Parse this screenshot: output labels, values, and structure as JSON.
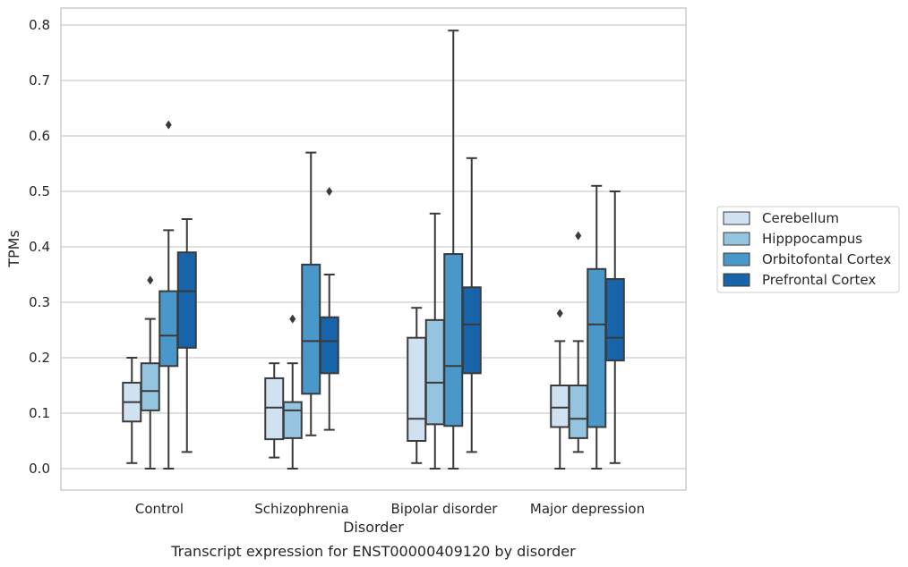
{
  "caption": "Transcript expression for ENST00000409120 by disorder",
  "chart_data": {
    "type": "box",
    "xlabel": "Disorder",
    "ylabel": "TPMs",
    "ylim": [
      -0.04,
      0.83
    ],
    "yticks": [
      0.0,
      0.1,
      0.2,
      0.3,
      0.4,
      0.5,
      0.6,
      0.7,
      0.8
    ],
    "ytick_labels": [
      "0.0",
      "0.1",
      "0.2",
      "0.3",
      "0.4",
      "0.5",
      "0.6",
      "0.7",
      "0.8"
    ],
    "grid": "horizontal",
    "legend_position": "right",
    "categories": [
      "Control",
      "Schizophrenia",
      "Bipolar disorder",
      "Major depression"
    ],
    "series": [
      {
        "name": "Cerebellum",
        "color": "#d0e1f2",
        "boxes": [
          {
            "whisker_low": 0.01,
            "q1": 0.085,
            "median": 0.12,
            "q3": 0.155,
            "whisker_high": 0.2,
            "outliers": []
          },
          {
            "whisker_low": 0.02,
            "q1": 0.053,
            "median": 0.11,
            "q3": 0.163,
            "whisker_high": 0.19,
            "outliers": []
          },
          {
            "whisker_low": 0.01,
            "q1": 0.05,
            "median": 0.09,
            "q3": 0.236,
            "whisker_high": 0.29,
            "outliers": []
          },
          {
            "whisker_low": 0.0,
            "q1": 0.075,
            "median": 0.11,
            "q3": 0.15,
            "whisker_high": 0.23,
            "outliers": [
              0.28
            ]
          }
        ]
      },
      {
        "name": "Hipppocampus",
        "color": "#94c4df",
        "boxes": [
          {
            "whisker_low": 0.0,
            "q1": 0.105,
            "median": 0.14,
            "q3": 0.19,
            "whisker_high": 0.27,
            "outliers": [
              0.34
            ]
          },
          {
            "whisker_low": 0.0,
            "q1": 0.055,
            "median": 0.105,
            "q3": 0.12,
            "whisker_high": 0.19,
            "outliers": [
              0.27
            ]
          },
          {
            "whisker_low": 0.0,
            "q1": 0.08,
            "median": 0.155,
            "q3": 0.268,
            "whisker_high": 0.46,
            "outliers": []
          },
          {
            "whisker_low": 0.03,
            "q1": 0.055,
            "median": 0.09,
            "q3": 0.15,
            "whisker_high": 0.23,
            "outliers": [
              0.42
            ]
          }
        ]
      },
      {
        "name": "Orbitofontal Cortex",
        "color": "#4a98c9",
        "boxes": [
          {
            "whisker_low": 0.0,
            "q1": 0.185,
            "median": 0.24,
            "q3": 0.32,
            "whisker_high": 0.43,
            "outliers": [
              0.62
            ]
          },
          {
            "whisker_low": 0.06,
            "q1": 0.135,
            "median": 0.23,
            "q3": 0.368,
            "whisker_high": 0.57,
            "outliers": []
          },
          {
            "whisker_low": 0.0,
            "q1": 0.077,
            "median": 0.185,
            "q3": 0.387,
            "whisker_high": 0.79,
            "outliers": []
          },
          {
            "whisker_low": 0.0,
            "q1": 0.075,
            "median": 0.26,
            "q3": 0.36,
            "whisker_high": 0.51,
            "outliers": []
          }
        ]
      },
      {
        "name": "Prefrontal Cortex",
        "color": "#1764ab",
        "boxes": [
          {
            "whisker_low": 0.03,
            "q1": 0.218,
            "median": 0.32,
            "q3": 0.39,
            "whisker_high": 0.45,
            "outliers": []
          },
          {
            "whisker_low": 0.07,
            "q1": 0.172,
            "median": 0.23,
            "q3": 0.273,
            "whisker_high": 0.35,
            "outliers": [
              0.5
            ]
          },
          {
            "whisker_low": 0.03,
            "q1": 0.172,
            "median": 0.26,
            "q3": 0.327,
            "whisker_high": 0.56,
            "outliers": []
          },
          {
            "whisker_low": 0.01,
            "q1": 0.195,
            "median": 0.236,
            "q3": 0.342,
            "whisker_high": 0.5,
            "outliers": []
          }
        ]
      }
    ]
  }
}
